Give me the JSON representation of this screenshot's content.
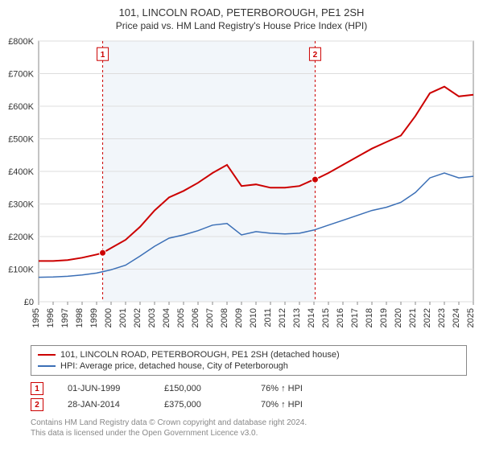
{
  "title": "101, LINCOLN ROAD, PETERBOROUGH, PE1 2SH",
  "subtitle": "Price paid vs. HM Land Registry's House Price Index (HPI)",
  "chart": {
    "type": "line",
    "background_color": "#ffffff",
    "plot_shade_color": "#f2f6fa",
    "grid_color": "#dddddd",
    "ylabel_prefix": "£",
    "ylim": [
      0,
      800000
    ],
    "ytick_step": 100000,
    "yticks": [
      "£0",
      "£100K",
      "£200K",
      "£300K",
      "£400K",
      "£500K",
      "£600K",
      "£700K",
      "£800K"
    ],
    "xlim": [
      1995,
      2025
    ],
    "xticks": [
      1995,
      1996,
      1997,
      1998,
      1999,
      2000,
      2001,
      2002,
      2003,
      2004,
      2005,
      2006,
      2007,
      2008,
      2009,
      2010,
      2011,
      2012,
      2013,
      2014,
      2015,
      2016,
      2017,
      2018,
      2019,
      2020,
      2021,
      2022,
      2023,
      2024,
      2025
    ],
    "shade_x": [
      1999.42,
      2014.08
    ],
    "series": [
      {
        "name": "subject",
        "label": "101, LINCOLN ROAD, PETERBOROUGH, PE1 2SH (detached house)",
        "color": "#cc0000",
        "width": 2,
        "x": [
          1995,
          1996,
          1997,
          1998,
          1999,
          1999.42,
          2000,
          2001,
          2002,
          2003,
          2004,
          2005,
          2006,
          2007,
          2008,
          2009,
          2010,
          2011,
          2012,
          2013,
          2014,
          2014.08,
          2015,
          2016,
          2017,
          2018,
          2019,
          2020,
          2021,
          2022,
          2023,
          2024,
          2025
        ],
        "y": [
          125000,
          125000,
          128000,
          135000,
          145000,
          150000,
          165000,
          190000,
          230000,
          280000,
          320000,
          340000,
          365000,
          395000,
          420000,
          355000,
          360000,
          350000,
          350000,
          355000,
          375000,
          375000,
          395000,
          420000,
          445000,
          470000,
          490000,
          510000,
          570000,
          640000,
          660000,
          630000,
          635000
        ]
      },
      {
        "name": "hpi",
        "label": "HPI: Average price, detached house, City of Peterborough",
        "color": "#3b6fb6",
        "width": 1.5,
        "x": [
          1995,
          1996,
          1997,
          1998,
          1999,
          2000,
          2001,
          2002,
          2003,
          2004,
          2005,
          2006,
          2007,
          2008,
          2009,
          2010,
          2011,
          2012,
          2013,
          2014,
          2015,
          2016,
          2017,
          2018,
          2019,
          2020,
          2021,
          2022,
          2023,
          2024,
          2025
        ],
        "y": [
          75000,
          76000,
          78000,
          82000,
          88000,
          98000,
          112000,
          140000,
          170000,
          195000,
          205000,
          218000,
          235000,
          240000,
          205000,
          215000,
          210000,
          208000,
          210000,
          220000,
          235000,
          250000,
          265000,
          280000,
          290000,
          305000,
          335000,
          380000,
          395000,
          380000,
          385000
        ]
      }
    ],
    "sale_markers": [
      {
        "n": "1",
        "x": 1999.42,
        "y": 150000,
        "color": "#cc0000"
      },
      {
        "n": "2",
        "x": 2014.08,
        "y": 375000,
        "color": "#cc0000"
      }
    ],
    "flag_y": 760000
  },
  "legend": {
    "items": [
      {
        "color": "#cc0000",
        "label": "101, LINCOLN ROAD, PETERBOROUGH, PE1 2SH (detached house)"
      },
      {
        "color": "#3b6fb6",
        "label": "HPI: Average price, detached house, City of Peterborough"
      }
    ]
  },
  "sales": [
    {
      "n": "1",
      "color": "#cc0000",
      "date": "01-JUN-1999",
      "price": "£150,000",
      "pct": "76% ↑ HPI"
    },
    {
      "n": "2",
      "color": "#cc0000",
      "date": "28-JAN-2014",
      "price": "£375,000",
      "pct": "70% ↑ HPI"
    }
  ],
  "footnote": {
    "line1": "Contains HM Land Registry data © Crown copyright and database right 2024.",
    "line2": "This data is licensed under the Open Government Licence v3.0."
  }
}
